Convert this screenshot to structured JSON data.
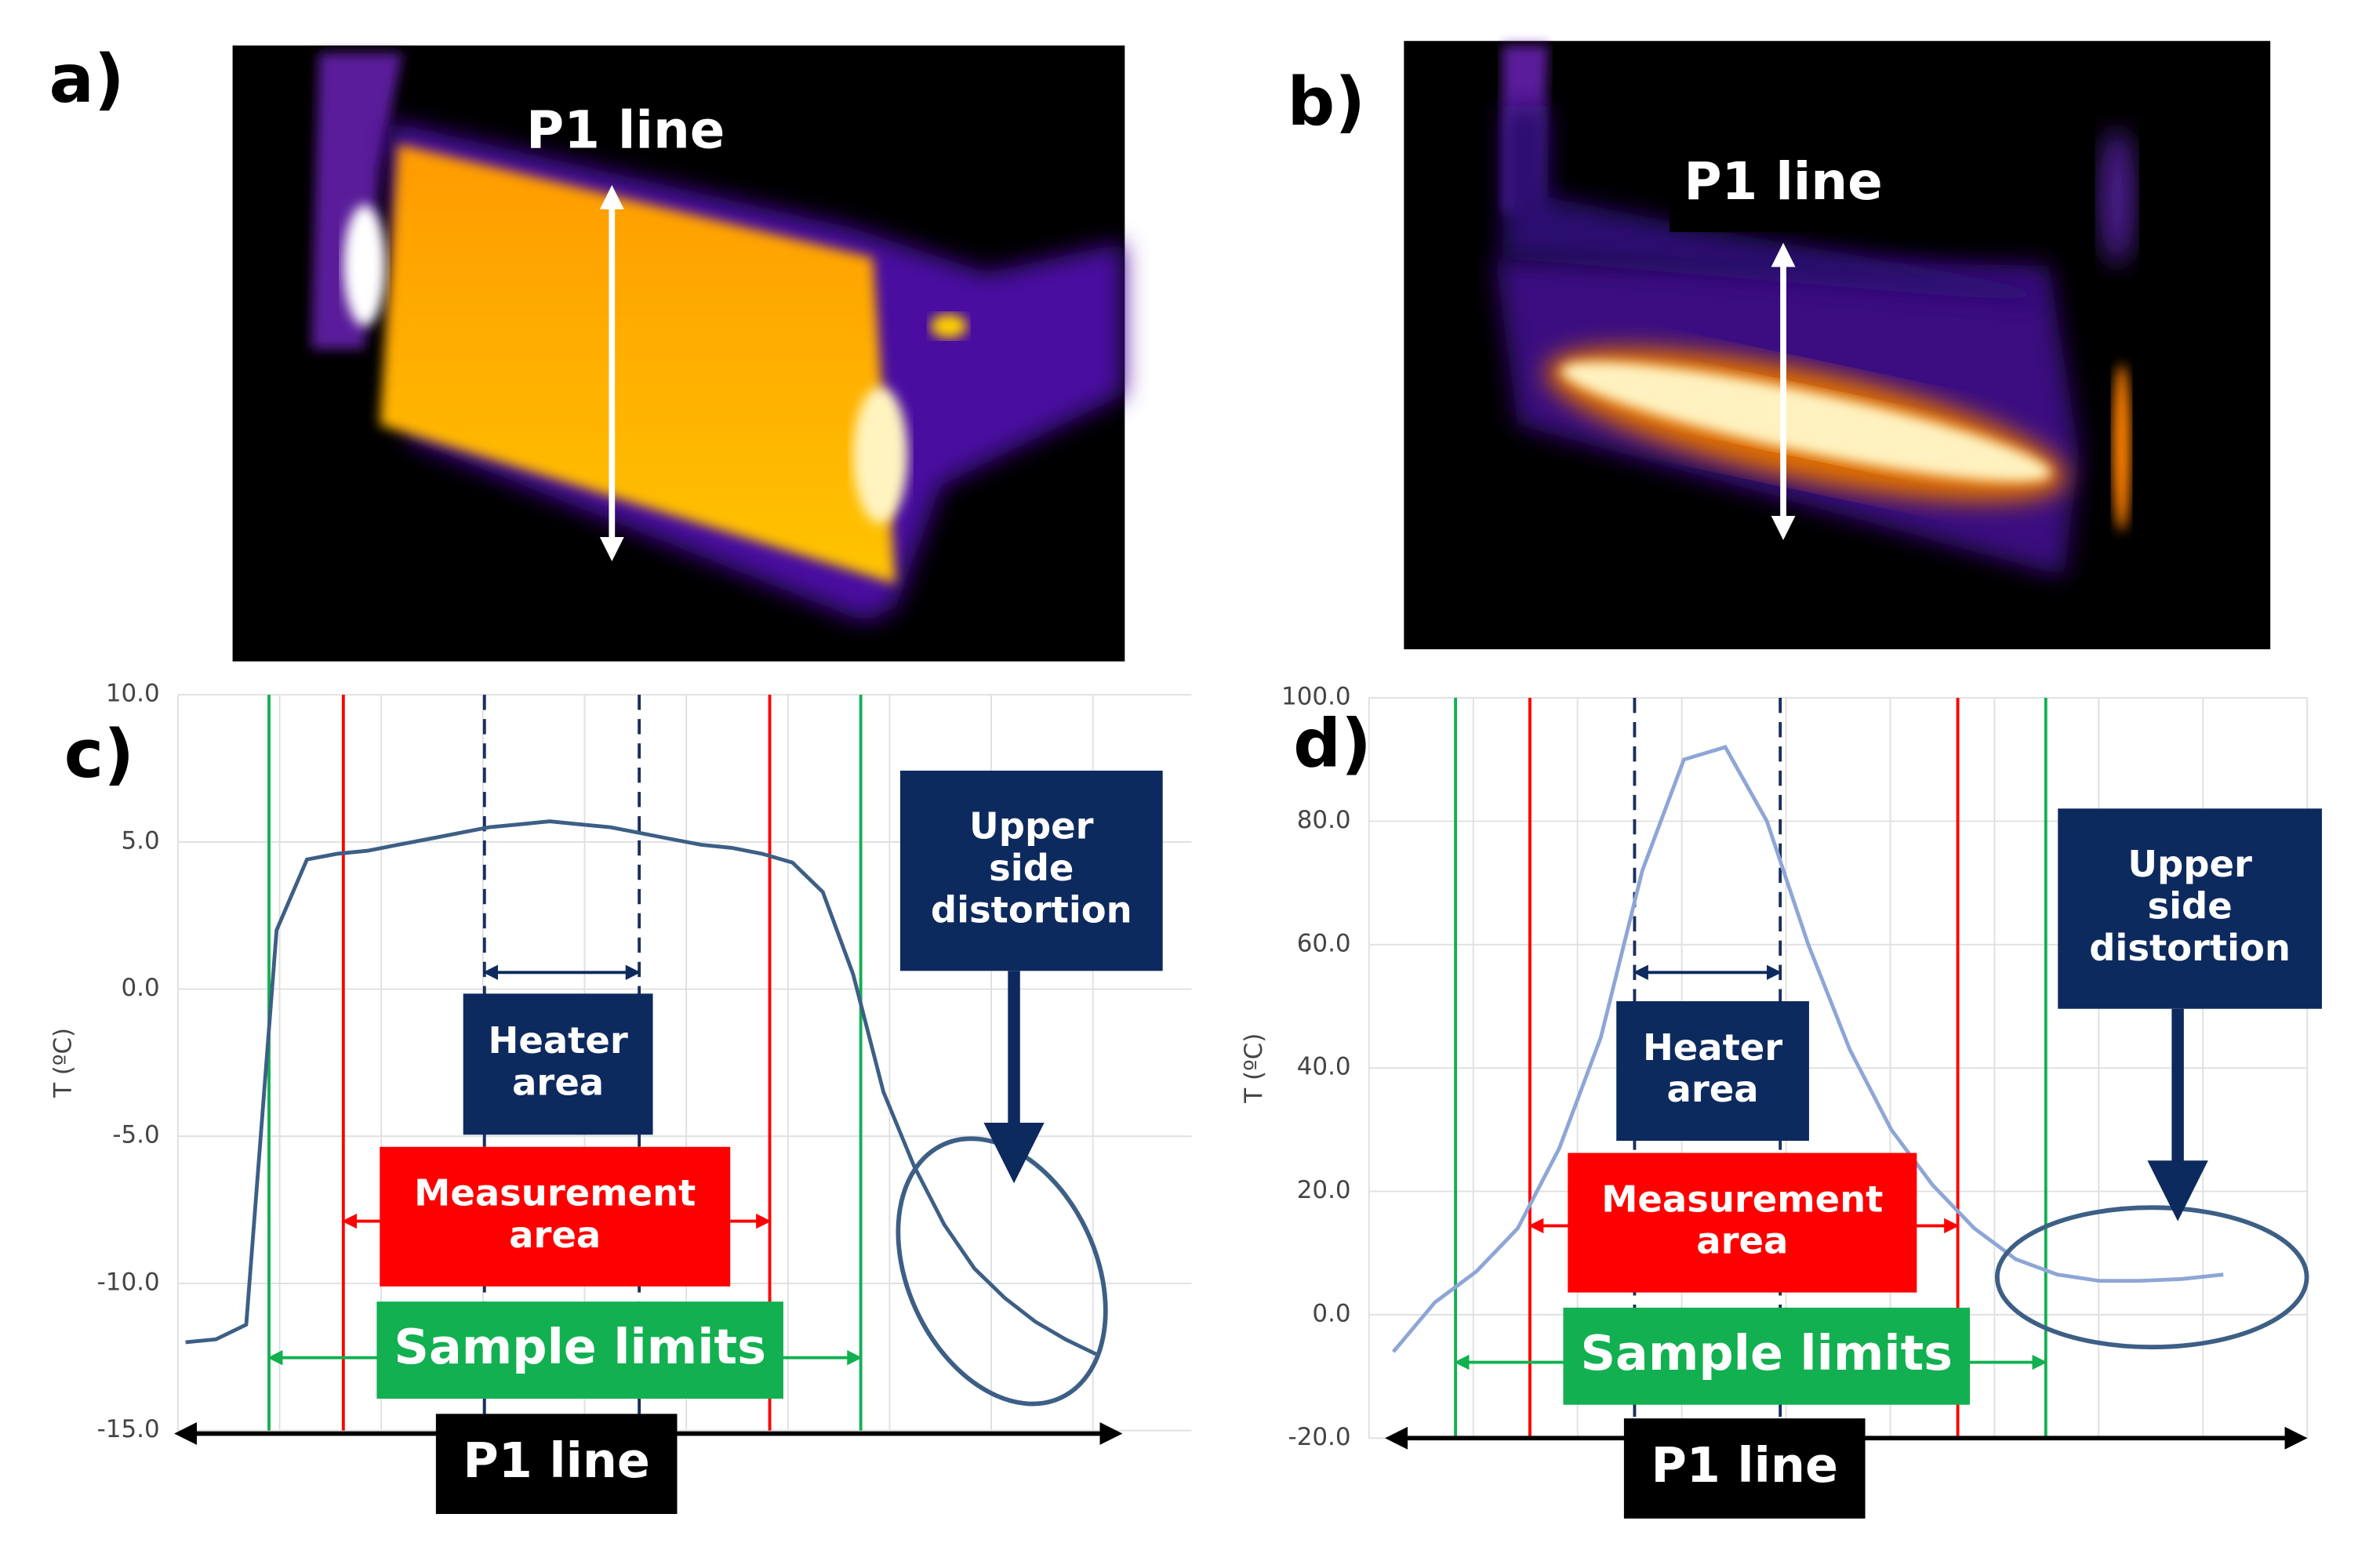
{
  "images": [
    {
      "panel": "a)",
      "label": "P1 line"
    },
    {
      "panel": "b)",
      "label": "P1 line"
    }
  ],
  "chart_data": [
    {
      "type": "line",
      "panel": "c)",
      "y_label": "T (ºC)",
      "ylim": [
        -15,
        10
      ],
      "yticks": [
        {
          "value": -15,
          "label": "-15.0"
        },
        {
          "value": -10,
          "label": "-10.0"
        },
        {
          "value": -5,
          "label": "-5.0"
        },
        {
          "value": 0,
          "label": "0.0"
        },
        {
          "value": 5,
          "label": "5.0"
        },
        {
          "value": 10,
          "label": "10.0"
        }
      ],
      "grid": true,
      "series": [
        {
          "color": "#3d5f86",
          "values": [
            -12.0,
            -11.9,
            -11.4,
            2.0,
            4.4,
            4.6,
            4.7,
            4.9,
            5.1,
            5.3,
            5.5,
            5.6,
            5.7,
            5.6,
            5.5,
            5.3,
            5.1,
            4.9,
            4.8,
            4.6,
            4.3,
            3.3,
            0.5,
            -3.5,
            -6.0,
            -8.0,
            -9.5,
            -10.5,
            -11.3,
            -11.9,
            -12.4
          ]
        }
      ],
      "annotations": {
        "heater": [
          "Heater",
          "area"
        ],
        "measurement": [
          "Measurement",
          "area"
        ],
        "sample": "Sample limits",
        "distortion": [
          "Upper",
          "side",
          "distortion"
        ],
        "axis": "P1 line"
      }
    },
    {
      "type": "line",
      "panel": "d)",
      "y_label": "T (ºC)",
      "ylim": [
        -20,
        100
      ],
      "yticks": [
        {
          "value": -20,
          "label": "-20.0"
        },
        {
          "value": 0,
          "label": "0.0"
        },
        {
          "value": 20,
          "label": "20.0"
        },
        {
          "value": 40,
          "label": "40.0"
        },
        {
          "value": 60,
          "label": "60.0"
        },
        {
          "value": 80,
          "label": "80.0"
        },
        {
          "value": 100,
          "label": "100.0"
        }
      ],
      "grid": true,
      "series": [
        {
          "color": "#8ea6d6",
          "values": [
            -6,
            2,
            7,
            14,
            27,
            45,
            72,
            90,
            92,
            80,
            60,
            43,
            30,
            21,
            14,
            9,
            6.5,
            5.5,
            5.5,
            5.8,
            6.5
          ]
        }
      ],
      "annotations": {
        "heater": [
          "Heater",
          "area"
        ],
        "measurement": [
          "Measurement",
          "area"
        ],
        "sample": "Sample limits",
        "distortion": [
          "Upper",
          "side",
          "distortion"
        ],
        "axis": "P1 line"
      }
    }
  ]
}
